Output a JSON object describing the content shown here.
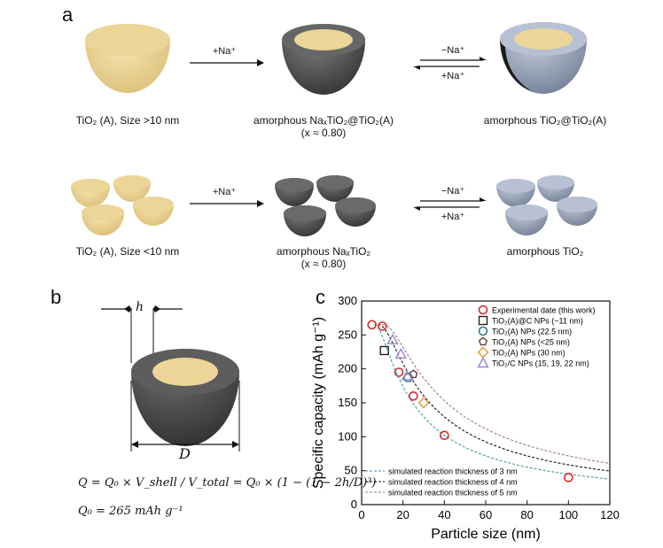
{
  "panel_a": {
    "letter": "a",
    "row1": {
      "cap1": "TiO₂ (A), Size >10 nm",
      "cap2": "amorphous NaₓTiO₂@TiO₂(A)",
      "cap2b": "(x ≈ 0.80)",
      "cap3": "amorphous TiO₂@TiO₂(A)",
      "arrow1": "+Na⁺",
      "arrow2_top": "−Na⁺",
      "arrow2_bottom": "+Na⁺"
    },
    "row2": {
      "cap1": "TiO₂ (A), Size <10 nm",
      "cap2": "amorphous NaₓTiO₂",
      "cap2b": "(x ≈ 0.80)",
      "cap3": "amorphous TiO₂",
      "arrow1": "+Na⁺",
      "arrow2_top": "−Na⁺",
      "arrow2_bottom": "+Na⁺"
    },
    "colors": {
      "core": "#ecd598",
      "shell_dark": "#5b5b5b",
      "shell_blue": "#aab5c9"
    }
  },
  "panel_b": {
    "letter": "b",
    "h_label": "h",
    "d_label": "D",
    "formula_q": "Q = Q₀ × V_shell / V_total = Q₀ × (1 − (1 − 2h/D)³)",
    "formula_q0": "Q₀ = 265 mAh g⁻¹"
  },
  "panel_c": {
    "letter": "c",
    "chart_data": {
      "type": "scatter",
      "xlabel": "Particle size (nm)",
      "ylabel": "Specific capacity (mAh g⁻¹)",
      "xlim": [
        0,
        120
      ],
      "ylim": [
        0,
        300
      ],
      "xticks": [
        0,
        20,
        40,
        60,
        80,
        100,
        120
      ],
      "yticks": [
        0,
        50,
        100,
        150,
        200,
        250,
        300
      ],
      "series": [
        {
          "name": "Experimental date (this work)",
          "marker": "circle",
          "color": "#d62b2b",
          "x": [
            5,
            10,
            18,
            25,
            40,
            100
          ],
          "y": [
            265,
            263,
            195,
            160,
            102,
            40
          ]
        },
        {
          "name": "TiO₂(A)@C NPs (~11 nm)",
          "marker": "square",
          "color": "#222222",
          "x": [
            11
          ],
          "y": [
            227
          ]
        },
        {
          "name": "TiO₂(A) NPs (22.5 nm)",
          "marker": "circle",
          "color": "#2e7c8c",
          "x": [
            22.5
          ],
          "y": [
            187
          ]
        },
        {
          "name": "TiO₂(A) NPs (<25 nm)",
          "marker": "pentagon",
          "color": "#6b3b3b",
          "x": [
            25
          ],
          "y": [
            192
          ]
        },
        {
          "name": "TiO₂(A) NPs (30 nm)",
          "marker": "diamond",
          "color": "#e39a2e",
          "x": [
            30
          ],
          "y": [
            150
          ]
        },
        {
          "name": "TiO₂/C NPs (15, 19, 22 nm)",
          "marker": "triangle",
          "color": "#9c84d6",
          "x": [
            15,
            19,
            22
          ],
          "y": [
            243,
            222,
            190
          ]
        }
      ],
      "curves": [
        {
          "name": "simulated reaction thickness of 3 nm",
          "h": 3,
          "color": "#3a9a9a"
        },
        {
          "name": "simulated reaction thickness of 4 nm",
          "h": 4,
          "color": "#111111"
        },
        {
          "name": "simulated reaction thickness of 5 nm",
          "h": 5,
          "color": "#9c7b6b"
        }
      ],
      "q0": 265
    }
  }
}
